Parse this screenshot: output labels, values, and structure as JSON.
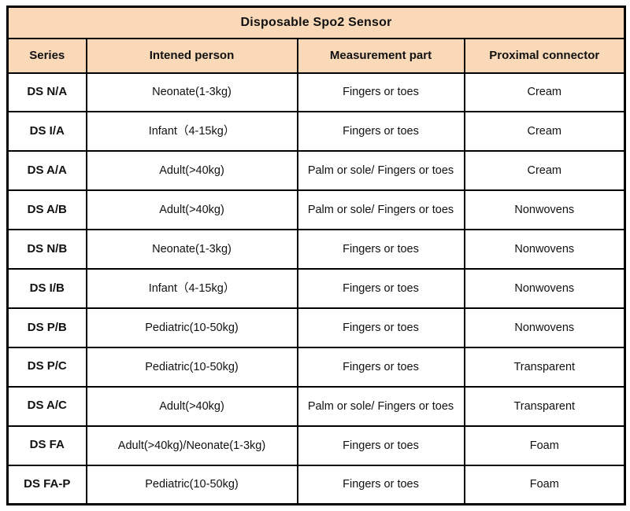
{
  "table": {
    "title": "Disposable Spo2 Sensor",
    "columns": [
      "Series",
      "Intened person",
      "Measurement part",
      "Proximal connector"
    ],
    "rows": [
      {
        "series": "DS N/A",
        "person": "Neonate(1-3kg)",
        "part": "Fingers or toes",
        "connector": "Cream"
      },
      {
        "series": "DS I/A",
        "person": "Infant（4-15kg）",
        "part": "Fingers or toes",
        "connector": "Cream"
      },
      {
        "series": "DS A/A",
        "person": "Adult(>40kg)",
        "part": "Palm or sole/  Fingers or toes",
        "connector": "Cream"
      },
      {
        "series": "DS A/B",
        "person": "Adult(>40kg)",
        "part": "Palm or sole/  Fingers or toes",
        "connector": "Nonwovens"
      },
      {
        "series": "DS N/B",
        "person": "Neonate(1-3kg)",
        "part": "Fingers or toes",
        "connector": "Nonwovens"
      },
      {
        "series": "DS I/B",
        "person": "Infant（4-15kg）",
        "part": "Fingers or toes",
        "connector": "Nonwovens"
      },
      {
        "series": "DS P/B",
        "person": "Pediatric(10-50kg)",
        "part": "Fingers or toes",
        "connector": "Nonwovens"
      },
      {
        "series": "DS P/C",
        "person": "Pediatric(10-50kg)",
        "part": "Fingers or toes",
        "connector": "Transparent"
      },
      {
        "series": "DS A/C",
        "person": "Adult(>40kg)",
        "part": "Palm or sole/  Fingers or toes",
        "connector": "Transparent"
      },
      {
        "series": "DS FA",
        "person": "Adult(>40kg)/Neonate(1-3kg)",
        "part": "Fingers or toes",
        "connector": "Foam"
      },
      {
        "series": "DS FA-P",
        "person": "Pediatric(10-50kg)",
        "part": "Fingers or toes",
        "connector": "Foam"
      }
    ],
    "colors": {
      "header_bg": "#f9d9b8",
      "border": "#000000"
    }
  }
}
